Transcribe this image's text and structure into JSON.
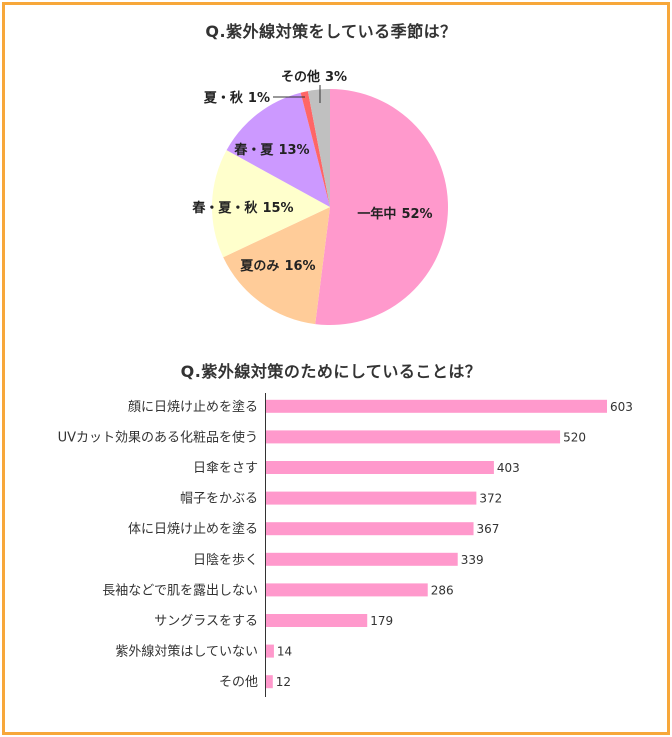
{
  "theme": {
    "border_color": "#f7a73a",
    "background": "#ffffff"
  },
  "chart_data": [
    {
      "type": "pie",
      "title": "Q.紫外線対策をしている季節は？",
      "unit": "%",
      "slices": [
        {
          "label": "一年中",
          "value": 52,
          "color": "#ff99cc"
        },
        {
          "label": "夏のみ",
          "value": 16,
          "color": "#ffcc99"
        },
        {
          "label": "春・夏・秋",
          "value": 15,
          "color": "#ffffcc"
        },
        {
          "label": "春・夏",
          "value": 13,
          "color": "#cc99ff"
        },
        {
          "label": "夏・秋",
          "value": 1,
          "color": "#ff6666"
        },
        {
          "label": "その他",
          "value": 3,
          "color": "#c0c0c0"
        }
      ]
    },
    {
      "type": "bar",
      "orientation": "horizontal",
      "title": "Q.紫外線対策のためにしていることは？",
      "categories": [
        "顔に日焼け止めを塗る",
        "UVカット効果のある化粧品を使う",
        "日傘をさす",
        "帽子をかぶる",
        "体に日焼け止めを塗る",
        "日陰を歩く",
        "長袖などで肌を露出しない",
        "サングラスをする",
        "紫外線対策はしていない",
        "その他"
      ],
      "values": [
        603,
        520,
        403,
        372,
        367,
        339,
        286,
        179,
        14,
        12
      ],
      "color": "#ff99cc",
      "grid": false
    }
  ]
}
